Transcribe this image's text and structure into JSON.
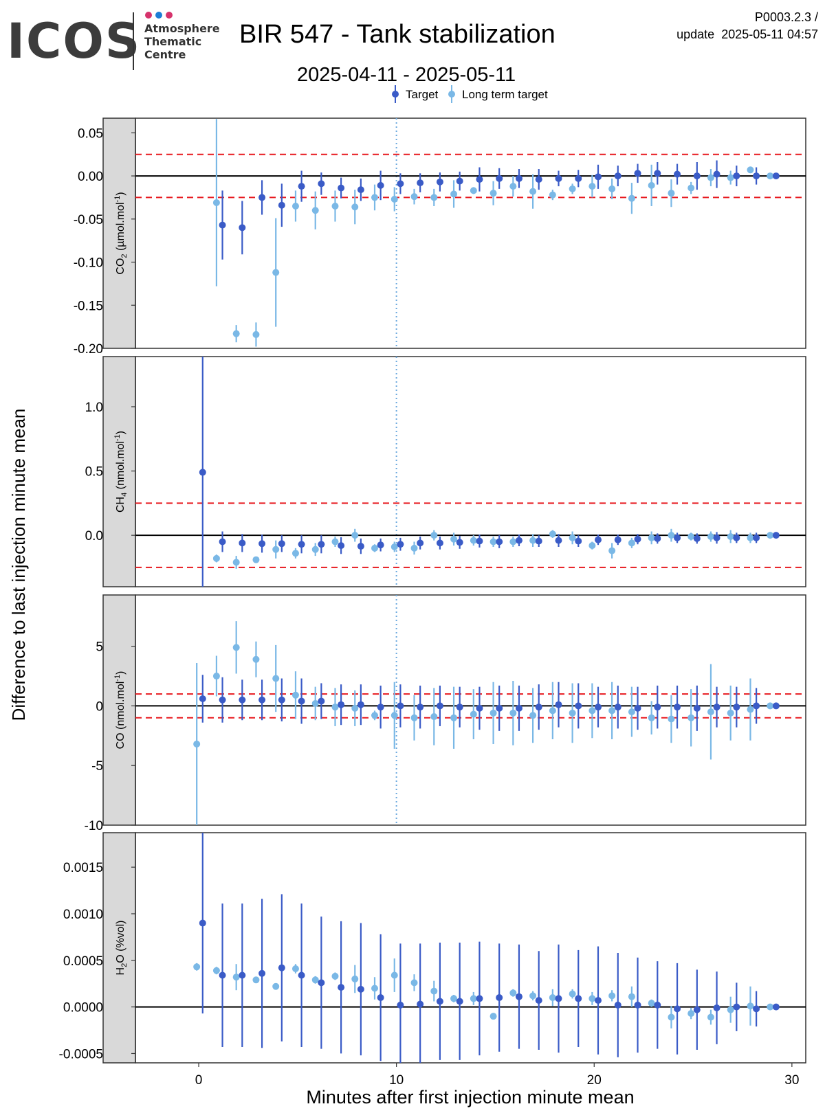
{
  "header": {
    "logo_text": "ICOS",
    "logo_sub": [
      "Atmosphere",
      "Thematic",
      "Centre"
    ],
    "logo_dot_colors": [
      "#d6336c",
      "#1c7ed6",
      "#d6336c"
    ],
    "title": "BIR 547 - Tank stabilization",
    "date_range": "2025-04-11 - 2025-05-11",
    "code": "P0003.2.3 /",
    "update_label": "update",
    "update_time": "2025-05-11 04:57"
  },
  "colors": {
    "target": "#3a5bc7",
    "long_term_target": "#7ab8e6",
    "limit_line": "#e8191f",
    "zero_line": "#000000",
    "strip_bg": "#d9d9d9",
    "vline": "#6aa8de"
  },
  "chart_data": {
    "type": "scatter",
    "legend": {
      "placement": "top",
      "entries": [
        "Target",
        "Long term target"
      ]
    },
    "xlabel": "Minutes after first injection minute mean",
    "ylabel": "Difference to last injection minute mean",
    "xlim": [
      -3.2,
      30.7
    ],
    "xticks": [
      0,
      10,
      20,
      30
    ],
    "vline_x": 10,
    "panels": [
      {
        "strip_label": "CO2 (µmol.mol-1)",
        "strip_main": "CO",
        "strip_sub": "2",
        "strip_unit_pre": " (µmol.mol",
        "strip_sup": "-1",
        "strip_unit_post": ")",
        "ylim": [
          -0.2,
          0.067
        ],
        "yticks": [
          0.05,
          0.0,
          -0.05,
          -0.1,
          -0.15,
          -0.2
        ],
        "ytick_labels": [
          "0.05",
          "0.00",
          "-0.05",
          "-0.10",
          "-0.15",
          "-0.20"
        ],
        "limits": [
          0.025,
          -0.025
        ],
        "series": [
          {
            "name": "Target",
            "x": [
              0.9,
              1.2,
              2.2,
              3.2,
              4.2,
              5.2,
              6.2,
              7.2,
              8.2,
              9.2,
              10.2,
              11.2,
              12.2,
              13.2,
              14.2,
              15.2,
              16.2,
              17.2,
              18.2,
              19.2,
              20.2,
              21.2,
              22.2,
              23.2,
              24.2,
              25.2,
              26.2,
              27.2,
              28.2,
              29.2
            ],
            "y": [
              null,
              -0.057,
              -0.06,
              -0.025,
              -0.034,
              -0.012,
              -0.009,
              -0.014,
              -0.016,
              -0.011,
              -0.009,
              -0.008,
              -0.007,
              -0.006,
              -0.004,
              -0.003,
              -0.003,
              -0.004,
              -0.003,
              -0.003,
              -0.001,
              0.0,
              0.003,
              0.003,
              0.002,
              0.0,
              0.002,
              0.0,
              0.0,
              0.0
            ],
            "err": [
              0,
              0.04,
              0.031,
              0.02,
              0.025,
              0.018,
              0.013,
              0.012,
              0.013,
              0.017,
              0.012,
              0.011,
              0.011,
              0.011,
              0.014,
              0.012,
              0.011,
              0.012,
              0.009,
              0.01,
              0.014,
              0.012,
              0.011,
              0.013,
              0.012,
              0.016,
              0.016,
              0.012,
              0.01,
              0.0
            ]
          },
          {
            "name": "Long term target",
            "x": [
              0.9,
              1.9,
              2.9,
              3.9,
              4.9,
              5.9,
              6.9,
              7.9,
              8.9,
              9.9,
              10.9,
              11.9,
              12.9,
              13.9,
              14.9,
              15.9,
              16.9,
              17.9,
              18.9,
              19.9,
              20.9,
              21.9,
              22.9,
              23.9,
              24.9,
              25.9,
              26.9,
              27.9,
              28.9
            ],
            "y": [
              -0.031,
              -0.183,
              -0.184,
              -0.112,
              -0.035,
              -0.04,
              -0.035,
              -0.036,
              -0.025,
              -0.027,
              -0.024,
              -0.025,
              -0.021,
              -0.017,
              -0.02,
              -0.012,
              -0.018,
              -0.022,
              -0.015,
              -0.012,
              -0.015,
              -0.026,
              -0.011,
              -0.02,
              -0.014,
              -0.002,
              -0.002,
              0.007,
              0.0
            ],
            "err": [
              0.097,
              0.01,
              0.014,
              0.063,
              0.018,
              0.022,
              0.018,
              0.02,
              0.015,
              0.014,
              0.009,
              0.01,
              0.016,
              0.004,
              0.014,
              0.012,
              0.02,
              0.006,
              0.006,
              0.013,
              0.012,
              0.018,
              0.024,
              0.016,
              0.007,
              0.01,
              0.008,
              0.0,
              0.0
            ]
          }
        ]
      },
      {
        "strip_label": "CH4 (nmol.mol-1)",
        "strip_main": "CH",
        "strip_sub": "4",
        "strip_unit_pre": " (nmol.mol",
        "strip_sup": "-1",
        "strip_unit_post": ")",
        "ylim": [
          -0.4,
          1.39
        ],
        "yticks": [
          1.0,
          0.5,
          0.0
        ],
        "ytick_labels": [
          "1.0",
          "0.5",
          "0.0"
        ],
        "limits": [
          0.25,
          -0.25
        ],
        "series": [
          {
            "name": "Target",
            "x": [
              0.2,
              1.2,
              2.2,
              3.2,
              4.2,
              5.2,
              6.2,
              7.2,
              8.2,
              9.2,
              10.2,
              11.2,
              12.2,
              13.2,
              14.2,
              15.2,
              16.2,
              17.2,
              18.2,
              19.2,
              20.2,
              21.2,
              22.2,
              23.2,
              24.2,
              25.2,
              26.2,
              27.2,
              28.2,
              29.2
            ],
            "y": [
              0.49,
              -0.05,
              -0.06,
              -0.065,
              -0.065,
              -0.07,
              -0.07,
              -0.08,
              -0.085,
              -0.075,
              -0.07,
              -0.06,
              -0.06,
              -0.055,
              -0.045,
              -0.05,
              -0.04,
              -0.045,
              -0.04,
              -0.045,
              -0.035,
              -0.035,
              -0.03,
              -0.025,
              -0.02,
              -0.025,
              -0.02,
              -0.02,
              -0.02,
              0.0
            ],
            "err": [
              1.2,
              0.08,
              0.07,
              0.07,
              0.065,
              0.07,
              0.07,
              0.065,
              0.06,
              0.05,
              0.05,
              0.05,
              0.05,
              0.05,
              0.05,
              0.05,
              0.045,
              0.045,
              0.05,
              0.045,
              0.04,
              0.04,
              0.04,
              0.04,
              0.04,
              0.04,
              0.045,
              0.04,
              0.04,
              0.0
            ]
          },
          {
            "name": "Long term target",
            "x": [
              0.9,
              1.9,
              2.9,
              3.9,
              4.9,
              5.9,
              6.9,
              7.9,
              8.9,
              9.9,
              10.9,
              11.9,
              12.9,
              13.9,
              14.9,
              15.9,
              16.9,
              17.9,
              18.9,
              19.9,
              20.9,
              21.9,
              22.9,
              23.9,
              24.9,
              25.9,
              26.9,
              27.9,
              28.9
            ],
            "y": [
              -0.18,
              -0.21,
              -0.19,
              -0.11,
              -0.14,
              -0.11,
              -0.05,
              0.0,
              -0.1,
              -0.09,
              -0.1,
              0.0,
              -0.03,
              -0.04,
              -0.05,
              -0.05,
              -0.04,
              0.01,
              -0.02,
              -0.08,
              -0.12,
              -0.06,
              -0.02,
              0.0,
              -0.01,
              -0.01,
              -0.01,
              -0.02,
              0.0
            ],
            "err": [
              0.03,
              0.05,
              0.02,
              0.07,
              0.04,
              0.05,
              0.04,
              0.05,
              0.03,
              0.04,
              0.05,
              0.04,
              0.05,
              0.04,
              0.04,
              0.04,
              0.05,
              0.03,
              0.05,
              0.03,
              0.06,
              0.04,
              0.05,
              0.05,
              0.03,
              0.04,
              0.05,
              0.04,
              0.0
            ]
          }
        ]
      },
      {
        "strip_label": "CO (nmol.mol-1)",
        "strip_main": "CO",
        "strip_sub": "",
        "strip_unit_pre": " (nmol.mol",
        "strip_sup": "-1",
        "strip_unit_post": ")",
        "ylim": [
          -10,
          9.3
        ],
        "yticks": [
          5,
          0,
          -5,
          -10
        ],
        "ytick_labels": [
          "5",
          "0",
          "-5",
          "-10"
        ],
        "limits": [
          1.0,
          -1.0
        ],
        "series": [
          {
            "name": "Target",
            "x": [
              0.2,
              1.2,
              2.2,
              3.2,
              4.2,
              5.2,
              6.2,
              7.2,
              8.2,
              9.2,
              10.2,
              11.2,
              12.2,
              13.2,
              14.2,
              15.2,
              16.2,
              17.2,
              18.2,
              19.2,
              20.2,
              21.2,
              22.2,
              23.2,
              24.2,
              25.2,
              26.2,
              27.2,
              28.2,
              29.2
            ],
            "y": [
              0.6,
              0.5,
              0.5,
              0.5,
              0.5,
              0.4,
              0.4,
              0.1,
              0.1,
              -0.1,
              0.0,
              -0.1,
              0.0,
              -0.1,
              -0.2,
              -0.2,
              -0.2,
              -0.1,
              0.1,
              0.0,
              -0.1,
              -0.1,
              -0.2,
              -0.1,
              -0.1,
              -0.2,
              -0.1,
              -0.1,
              0.0,
              0.0
            ],
            "err": [
              2.0,
              1.9,
              1.7,
              1.7,
              1.8,
              1.9,
              1.5,
              1.7,
              1.7,
              1.8,
              1.8,
              1.8,
              1.7,
              1.7,
              1.8,
              1.9,
              1.9,
              1.9,
              1.9,
              1.9,
              1.7,
              1.8,
              1.8,
              1.8,
              1.8,
              1.9,
              1.7,
              1.7,
              1.5,
              0.0
            ]
          },
          {
            "name": "Long term target",
            "x": [
              -0.1,
              0.9,
              1.9,
              2.9,
              3.9,
              4.9,
              5.9,
              6.9,
              7.9,
              8.9,
              9.9,
              10.9,
              11.9,
              12.9,
              13.9,
              14.9,
              15.9,
              16.9,
              17.9,
              18.9,
              19.9,
              20.9,
              21.9,
              22.9,
              23.9,
              24.9,
              25.9,
              26.9,
              27.9,
              28.9
            ],
            "y": [
              -3.2,
              2.5,
              4.9,
              3.9,
              2.3,
              0.9,
              0.2,
              -0.1,
              -0.2,
              -0.8,
              -0.8,
              -1.0,
              -0.9,
              -1.0,
              -0.7,
              -0.6,
              -0.6,
              -0.8,
              -0.4,
              -0.6,
              -0.4,
              -0.4,
              -0.5,
              -1.0,
              -1.1,
              -1.0,
              -0.5,
              -0.6,
              -0.3,
              0.0
            ],
            "err": [
              6.8,
              1.7,
              2.2,
              1.5,
              2.8,
              2.0,
              1.4,
              1.6,
              1.5,
              0.4,
              2.8,
              1.9,
              2.4,
              2.6,
              2.1,
              2.6,
              2.7,
              2.3,
              2.4,
              2.5,
              2.3,
              2.4,
              2.1,
              1.4,
              2.0,
              2.4,
              4.0,
              2.3,
              2.6,
              0.0
            ]
          }
        ]
      },
      {
        "strip_label": "H2O (%vol)",
        "strip_main": "H",
        "strip_sub": "2",
        "strip_unit_pre": "O (%vol)",
        "strip_sup": "",
        "strip_unit_post": "",
        "ylim": [
          -0.0006,
          0.00187
        ],
        "yticks": [
          0.0015,
          0.001,
          0.0005,
          0.0,
          -0.0005
        ],
        "ytick_labels": [
          "0.0015",
          "0.0010",
          "0.0005",
          "0.0000",
          "-0.0005"
        ],
        "limits": [],
        "series": [
          {
            "name": "Target",
            "x": [
              0.2,
              1.2,
              2.2,
              3.2,
              4.2,
              5.2,
              6.2,
              7.2,
              8.2,
              9.2,
              10.2,
              11.2,
              12.2,
              13.2,
              14.2,
              15.2,
              16.2,
              17.2,
              18.2,
              19.2,
              20.2,
              21.2,
              22.2,
              23.2,
              24.2,
              25.2,
              26.2,
              27.2,
              28.2,
              29.2
            ],
            "y": [
              0.0009,
              0.00034,
              0.00034,
              0.00036,
              0.00042,
              0.00034,
              0.00026,
              0.00021,
              0.00019,
              0.0001,
              2e-05,
              3e-05,
              6e-05,
              6e-05,
              9e-05,
              0.0001,
              0.00011,
              7e-05,
              9e-05,
              9e-05,
              7e-05,
              2e-05,
              2e-05,
              2e-05,
              -2e-05,
              -3e-05,
              -1e-05,
              0.0,
              -2e-05,
              0.0
            ],
            "err": [
              0.00097,
              0.00077,
              0.00077,
              0.0008,
              0.00079,
              0.00077,
              0.00071,
              0.00071,
              0.00071,
              0.00068,
              0.00066,
              0.00065,
              0.00063,
              0.00063,
              0.00061,
              0.00058,
              0.00056,
              0.00053,
              0.00058,
              0.00052,
              0.00058,
              0.00056,
              0.00051,
              0.00047,
              0.00049,
              0.00043,
              0.00039,
              0.00026,
              0.00019,
              0.0
            ]
          },
          {
            "name": "Long term target",
            "x": [
              -0.1,
              0.9,
              1.9,
              2.9,
              3.9,
              4.9,
              5.9,
              6.9,
              7.9,
              8.9,
              9.9,
              10.9,
              11.9,
              12.9,
              13.9,
              14.9,
              15.9,
              16.9,
              17.9,
              18.9,
              19.9,
              20.9,
              21.9,
              22.9,
              23.9,
              24.9,
              25.9,
              26.9,
              27.9,
              28.9
            ],
            "y": [
              0.00043,
              0.00039,
              0.00032,
              0.00029,
              0.00022,
              0.00041,
              0.00029,
              0.00033,
              0.0003,
              0.0002,
              0.00034,
              0.00026,
              0.00017,
              9e-05,
              9e-05,
              -0.0001,
              0.00015,
              0.00012,
              0.0001,
              0.00014,
              9e-05,
              0.00012,
              0.00011,
              4e-05,
              -0.00011,
              -7e-05,
              -0.00011,
              -3e-05,
              1e-05,
              0.0
            ],
            "err": [
              4e-05,
              4e-05,
              0.00014,
              2e-05,
              2e-05,
              5e-05,
              4e-05,
              4e-05,
              0.00015,
              0.00012,
              0.00018,
              9e-05,
              0.00011,
              4e-05,
              7e-05,
              3e-05,
              4e-05,
              5e-05,
              9e-05,
              5e-05,
              7e-05,
              6e-05,
              0.00011,
              4e-05,
              0.00012,
              6e-05,
              8e-05,
              0.00014,
              0.00021,
              0.0
            ]
          }
        ]
      }
    ]
  }
}
